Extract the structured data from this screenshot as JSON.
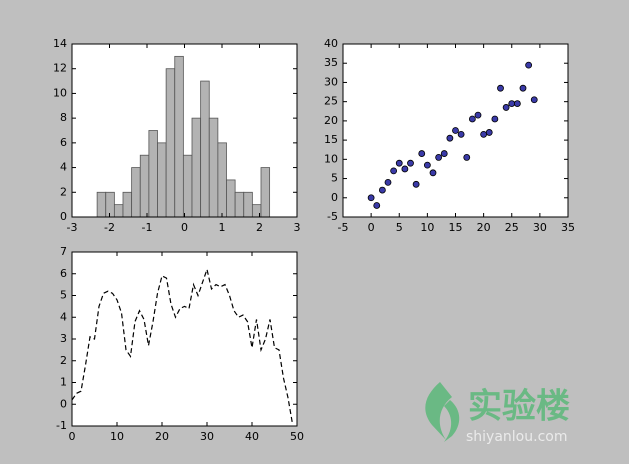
{
  "chart_data": [
    {
      "type": "histogram",
      "bins": [
        -2.33,
        -2.1,
        -1.87,
        -1.64,
        -1.41,
        -1.18,
        -0.95,
        -0.72,
        -0.49,
        -0.26,
        -0.03,
        0.2,
        0.43,
        0.66,
        0.89,
        1.12,
        1.35,
        1.58,
        1.81,
        2.04,
        2.27
      ],
      "values": [
        2,
        2,
        1,
        2,
        4,
        5,
        7,
        6,
        12,
        13,
        5,
        8,
        11,
        8,
        6,
        3,
        2,
        2,
        1,
        4
      ],
      "color": "#b3b3b3",
      "xlim": [
        -3,
        3
      ],
      "xticks": [
        -3,
        -2,
        -1,
        0,
        1,
        2,
        3
      ],
      "ylim": [
        0,
        14
      ],
      "yticks": [
        0,
        2,
        4,
        6,
        8,
        10,
        12,
        14
      ]
    },
    {
      "type": "scatter",
      "x": [
        0,
        1,
        2,
        3,
        4,
        5,
        6,
        7,
        8,
        9,
        10,
        11,
        12,
        13,
        14,
        15,
        16,
        17,
        18,
        19,
        20,
        21,
        22,
        23,
        24,
        25,
        26,
        27,
        28,
        29
      ],
      "values": [
        0,
        -2,
        2,
        4,
        7,
        9,
        7.5,
        9,
        3.5,
        11.5,
        8.5,
        6.5,
        10.5,
        11.5,
        15.5,
        17.5,
        16.5,
        10.5,
        20.5,
        21.5,
        16.5,
        17,
        20.5,
        28.5,
        23.5,
        24.5,
        24.5,
        28.5,
        34.5,
        25.5
      ],
      "color": "#3a3aa8",
      "xlim": [
        -5,
        35
      ],
      "xticks": [
        -5,
        0,
        5,
        10,
        15,
        20,
        25,
        30,
        35
      ],
      "ylim": [
        -5,
        40
      ],
      "yticks": [
        -5,
        0,
        5,
        10,
        15,
        20,
        25,
        30,
        35,
        40
      ]
    },
    {
      "type": "line",
      "x": [
        0,
        1,
        2,
        3,
        4,
        5,
        6,
        7,
        8,
        9,
        10,
        11,
        12,
        13,
        14,
        15,
        16,
        17,
        18,
        19,
        20,
        21,
        22,
        23,
        24,
        25,
        26,
        27,
        28,
        29,
        30,
        31,
        32,
        33,
        34,
        35,
        36,
        37,
        38,
        39,
        40,
        41,
        42,
        43,
        44,
        45,
        46,
        47,
        48,
        49
      ],
      "values": [
        0.2,
        0.5,
        0.6,
        1.8,
        3.1,
        3.0,
        4.5,
        5.1,
        5.2,
        5.1,
        4.8,
        4.2,
        2.5,
        2.2,
        3.8,
        4.3,
        3.9,
        2.7,
        3.8,
        5.1,
        5.9,
        5.8,
        4.6,
        4.0,
        4.4,
        4.5,
        4.4,
        5.5,
        5.0,
        5.6,
        6.2,
        5.3,
        5.5,
        5.4,
        5.5,
        5.0,
        4.3,
        4.0,
        4.1,
        3.8,
        2.6,
        3.9,
        2.5,
        3.0,
        3.9,
        2.6,
        2.5,
        1.2,
        0.3,
        -0.9
      ],
      "color": "#000000",
      "linestyle": "dashed",
      "xlim": [
        0,
        50
      ],
      "xticks": [
        0,
        10,
        20,
        30,
        40,
        50
      ],
      "ylim": [
        -1,
        7
      ],
      "yticks": [
        -1,
        0,
        1,
        2,
        3,
        4,
        5,
        6,
        7
      ]
    }
  ],
  "watermark": {
    "name": "实验楼",
    "site": "shiyanlou.com"
  }
}
